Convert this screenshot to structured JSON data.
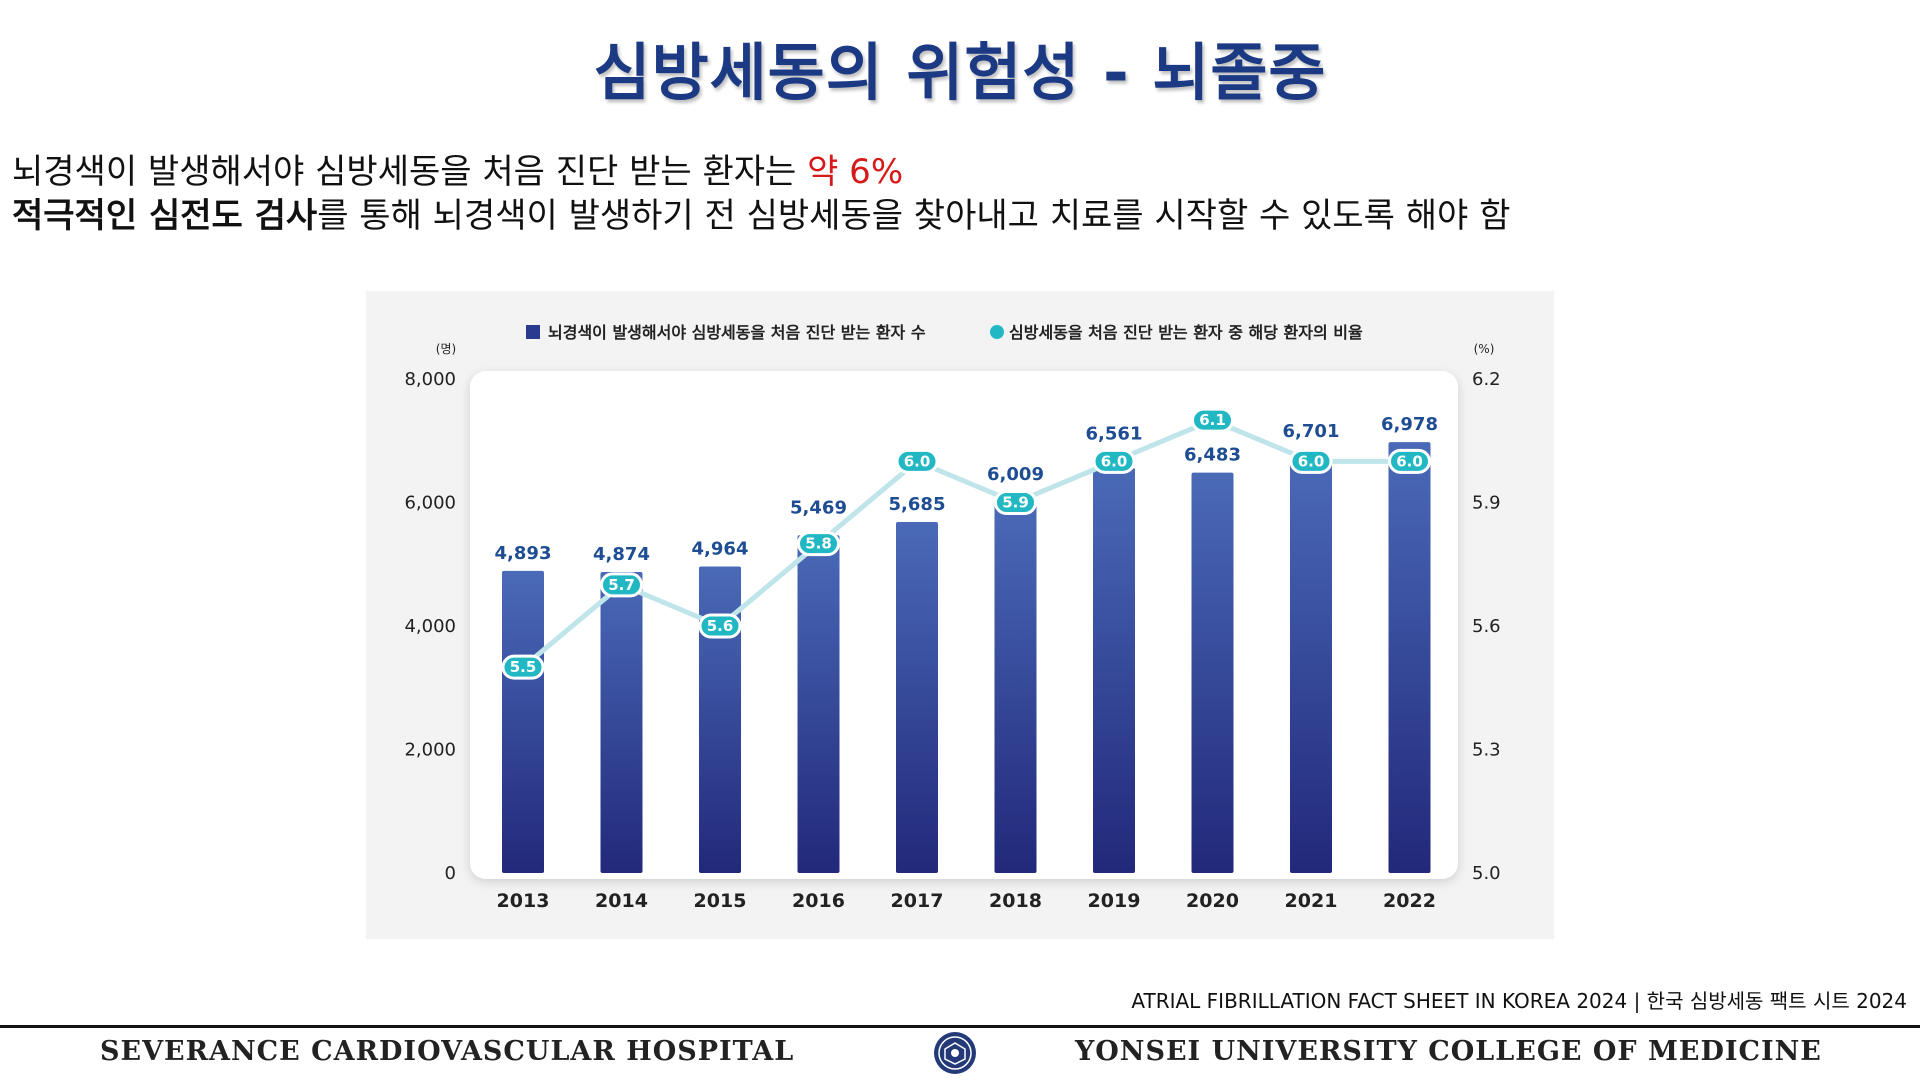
{
  "slide": {
    "title": "심방세동의 위험성 - 뇌졸중",
    "line1_text": "뇌경색이 발생해서야 심방세동을 처음 진단 받는 환자는 ",
    "line1_highlight": "약 6%",
    "line2_bold": "적극적인 심전도 검사",
    "line2_text": "를 통해 뇌경색이 발생하기 전 심방세동을 찾아내고 치료를 시작할 수 있도록 해야 함",
    "source": "ATRIAL FIBRILLATION FACT SHEET IN KOREA 2024 | 한국 심방세동 팩트 시트 2024",
    "highlight_color": "#d61a1a",
    "title_color": "#1c3a84"
  },
  "footer": {
    "left": "SEVERANCE CARDIOVASCULAR HOSPITAL",
    "right": "YONSEI UNIVERSITY COLLEGE OF MEDICINE",
    "seal_icon": "yonsei-seal-icon"
  },
  "chart_data": {
    "type": "bar",
    "categories": [
      "2013",
      "2014",
      "2015",
      "2016",
      "2017",
      "2018",
      "2019",
      "2020",
      "2021",
      "2022"
    ],
    "series": [
      {
        "name": "뇌경색이 발생해서야 심방세동을 처음 진단 받는 환자 수",
        "type": "bar",
        "axis": "left",
        "values": [
          4893,
          4874,
          4964,
          5469,
          5685,
          6009,
          6561,
          6483,
          6701,
          6978
        ],
        "labels": [
          "4,893",
          "4,874",
          "4,964",
          "5,469",
          "5,685",
          "6,009",
          "6,561",
          "6,483",
          "6,701",
          "6,978"
        ],
        "color": "#2a3a8e"
      },
      {
        "name": "심방세동을 처음 진단 받는 환자 중 해당 환자의 비율",
        "type": "line",
        "axis": "right",
        "values": [
          5.5,
          5.7,
          5.6,
          5.8,
          6.0,
          5.9,
          6.0,
          6.1,
          6.0,
          6.0
        ],
        "labels": [
          "5.5",
          "5.7",
          "5.6",
          "5.8",
          "6.0",
          "5.9",
          "6.0",
          "6.1",
          "6.0",
          "6.0"
        ],
        "color": "#21b8c4"
      }
    ],
    "y_left": {
      "unit": "(명)",
      "range": [
        0,
        8000
      ],
      "ticks": [
        "0",
        "2,000",
        "4,000",
        "6,000",
        "8,000"
      ]
    },
    "y_right": {
      "unit": "(%)",
      "range": [
        5.0,
        6.2
      ],
      "ticks": [
        "5.0",
        "5.3",
        "5.6",
        "5.9",
        "6.2"
      ]
    },
    "legend_position": "top-center",
    "grid": false
  }
}
